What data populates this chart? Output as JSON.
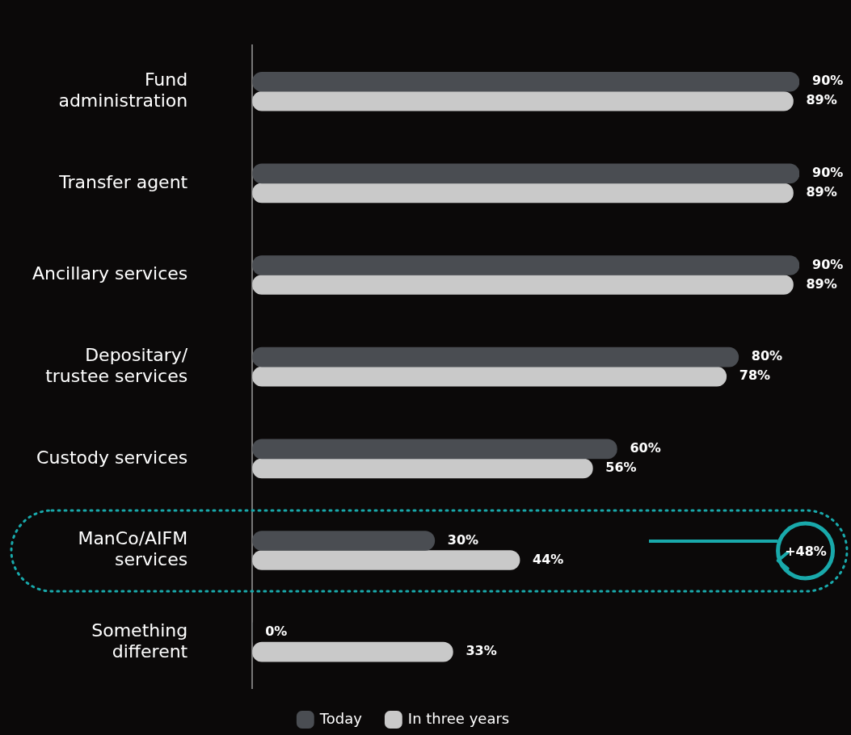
{
  "chart_data": {
    "type": "bar",
    "orientation": "horizontal",
    "categories": [
      "Fund administration",
      "Transfer agent",
      "Ancillary services",
      "Depositary/ trustee services",
      "Custody services",
      "ManCo/AIFM services",
      "Something different"
    ],
    "series": [
      {
        "name": "Today",
        "color": "#4a4d52",
        "values": [
          90,
          90,
          90,
          80,
          60,
          30,
          0
        ],
        "value_labels": [
          "90%",
          "90%",
          "90%",
          "80%",
          "60%",
          "30%",
          "0%"
        ]
      },
      {
        "name": "In three years",
        "color": "#c9c9c9",
        "values": [
          89,
          89,
          89,
          78,
          56,
          44,
          33
        ],
        "value_labels": [
          "89%",
          "89%",
          "89%",
          "78%",
          "56%",
          "44%",
          "33%"
        ]
      }
    ],
    "tick_labels": "y",
    "legend": "bottom",
    "grid": false,
    "annotations": [
      "+48%"
    ]
  }
}
